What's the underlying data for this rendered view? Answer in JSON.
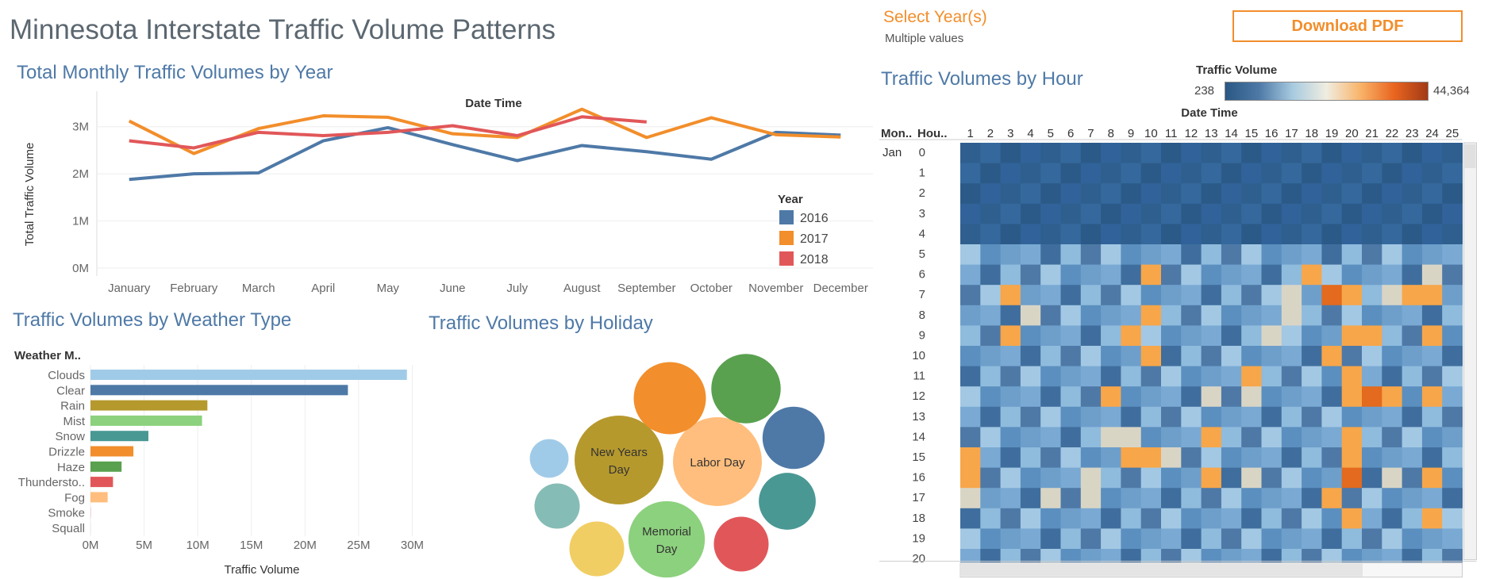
{
  "dashboard": {
    "title": "Minnesota Interstate Traffic Volume Patterns",
    "filter_label": "Select Year(s)",
    "filter_value": "Multiple values",
    "download_label": "Download PDF",
    "accent_color": "#f28e2b"
  },
  "line_section_title": "Total Monthly Traffic Volumes by Year",
  "weather_section_title": "Traffic Volumes by Weather Type",
  "holiday_section_title": "Traffic Volumes by Holiday",
  "heat_section_title": "Traffic Volumes by Hour",
  "heat_legend": {
    "title": "Traffic Volume",
    "min": "238",
    "max": "44,364"
  },
  "chart_data": [
    {
      "type": "line",
      "title": "Total Monthly Traffic Volumes by Year",
      "xlabel": "Date Time",
      "ylabel": "Total Traffic Volume",
      "categories": [
        "January",
        "February",
        "March",
        "April",
        "May",
        "June",
        "July",
        "August",
        "September",
        "October",
        "November",
        "December"
      ],
      "y_ticks": [
        "0M",
        "1M",
        "2M",
        "3M"
      ],
      "ylim": [
        0,
        3500000
      ],
      "legend_title": "Year",
      "legend_position": "right",
      "series": [
        {
          "name": "2016",
          "color": "#4e79a7",
          "values": [
            1880000,
            2000000,
            2020000,
            2700000,
            2980000,
            2620000,
            2280000,
            2600000,
            2470000,
            2310000,
            2880000,
            2820000
          ]
        },
        {
          "name": "2017",
          "color": "#f28e2b",
          "values": [
            3120000,
            2430000,
            2960000,
            3230000,
            3200000,
            2850000,
            2770000,
            3370000,
            2770000,
            3190000,
            2830000,
            2780000
          ]
        },
        {
          "name": "2018",
          "color": "#e15759",
          "values": [
            2700000,
            2550000,
            2880000,
            2810000,
            2880000,
            3020000,
            2810000,
            3210000,
            3100000,
            null,
            null,
            null
          ]
        }
      ]
    },
    {
      "type": "bar",
      "orientation": "horizontal",
      "title": "Traffic Volumes by Weather Type",
      "ylabel": "Weather M..",
      "xlabel": "Traffic Volume",
      "x_ticks": [
        "0M",
        "5M",
        "10M",
        "15M",
        "20M",
        "25M",
        "30M"
      ],
      "xlim": [
        0,
        31000000
      ],
      "categories": [
        "Clouds",
        "Clear",
        "Rain",
        "Mist",
        "Snow",
        "Drizzle",
        "Haze",
        "Thundersto..",
        "Fog",
        "Smoke",
        "Squall"
      ],
      "values": [
        29500000,
        24000000,
        10900000,
        10400000,
        5400000,
        4000000,
        2900000,
        2100000,
        1600000,
        20000,
        5000
      ],
      "colors": [
        "#a0cbe8",
        "#4e79a7",
        "#b6992d",
        "#8cd17d",
        "#499894",
        "#f28e2b",
        "#59a14f",
        "#e15759",
        "#ffbe7d",
        "#d37295",
        "#9d7660"
      ]
    },
    {
      "type": "bubble",
      "title": "Traffic Volumes by Holiday",
      "bubbles": [
        {
          "label": "New Years Day",
          "lines": [
            "New Years",
            "Day"
          ],
          "color": "#b6992d",
          "value": 100
        },
        {
          "label": "Labor Day",
          "lines": [
            "Labor Day"
          ],
          "color": "#ffbe7d",
          "value": 100
        },
        {
          "label": "Memorial Day",
          "lines": [
            "Memorial",
            "Day"
          ],
          "color": "#8cd17d",
          "value": 74
        },
        {
          "label": "",
          "lines": [],
          "color": "#f28e2b",
          "value": 66
        },
        {
          "label": "",
          "lines": [],
          "color": "#59a14f",
          "value": 61
        },
        {
          "label": "",
          "lines": [],
          "color": "#4e79a7",
          "value": 49
        },
        {
          "label": "",
          "lines": [],
          "color": "#499894",
          "value": 41
        },
        {
          "label": "",
          "lines": [],
          "color": "#f1ce63",
          "value": 38
        },
        {
          "label": "",
          "lines": [],
          "color": "#e15759",
          "value": 38
        },
        {
          "label": "",
          "lines": [],
          "color": "#86bcb6",
          "value": 26
        },
        {
          "label": "",
          "lines": [],
          "color": "#a0cbe8",
          "value": 19
        }
      ]
    },
    {
      "type": "heatmap",
      "title": "Traffic Volumes by Hour",
      "xlabel": "Date Time",
      "row_headers": [
        "Mon..",
        "Hou.."
      ],
      "month_label": "Jan",
      "columns": [
        "1",
        "2",
        "3",
        "4",
        "5",
        "6",
        "7",
        "8",
        "9",
        "10",
        "11",
        "12",
        "13",
        "14",
        "15",
        "16",
        "17",
        "18",
        "19",
        "20",
        "21",
        "22",
        "23",
        "24",
        "25"
      ],
      "rows": [
        "0",
        "1",
        "2",
        "3",
        "4",
        "5",
        "6",
        "7",
        "8",
        "9",
        "10",
        "11",
        "12",
        "13",
        "14",
        "15",
        "16",
        "17",
        "18",
        "19",
        "20"
      ],
      "value_range": [
        238,
        44364
      ],
      "hot_cells": [
        [
          6,
          10
        ],
        [
          6,
          18
        ],
        [
          7,
          3
        ],
        [
          7,
          20
        ],
        [
          7,
          23
        ],
        [
          7,
          24
        ],
        [
          8,
          10
        ],
        [
          9,
          3
        ],
        [
          9,
          9
        ],
        [
          9,
          20
        ],
        [
          9,
          21
        ],
        [
          9,
          24
        ],
        [
          10,
          10
        ],
        [
          10,
          19
        ],
        [
          11,
          15
        ],
        [
          11,
          20
        ],
        [
          12,
          8
        ],
        [
          12,
          20
        ],
        [
          12,
          21
        ],
        [
          12,
          22
        ],
        [
          12,
          24
        ],
        [
          14,
          13
        ],
        [
          14,
          20
        ],
        [
          15,
          1
        ],
        [
          15,
          9
        ],
        [
          15,
          10
        ],
        [
          15,
          20
        ],
        [
          16,
          1
        ],
        [
          16,
          13
        ],
        [
          16,
          20
        ],
        [
          16,
          24
        ],
        [
          17,
          19
        ],
        [
          18,
          20
        ],
        [
          18,
          24
        ]
      ],
      "very_hot_cells": [
        [
          7,
          19
        ],
        [
          12,
          21
        ],
        [
          16,
          20
        ]
      ],
      "pale_cells": [
        [
          7,
          17
        ],
        [
          7,
          22
        ],
        [
          8,
          4
        ],
        [
          8,
          17
        ],
        [
          9,
          16
        ],
        [
          11,
          20
        ],
        [
          12,
          13
        ],
        [
          12,
          15
        ],
        [
          14,
          8
        ],
        [
          14,
          9
        ],
        [
          15,
          11
        ],
        [
          16,
          7
        ],
        [
          16,
          15
        ],
        [
          16,
          22
        ],
        [
          17,
          1
        ],
        [
          17,
          5
        ],
        [
          17,
          7
        ],
        [
          6,
          24
        ]
      ]
    }
  ]
}
